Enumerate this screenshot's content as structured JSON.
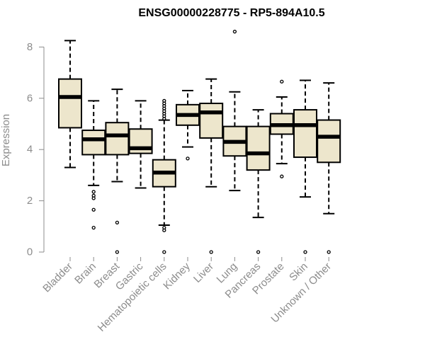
{
  "chart_data": {
    "type": "boxplot",
    "title": "ENSG00000228775 - RP5-894A10.5",
    "xlabel": "",
    "ylabel": "Expression",
    "ylim": [
      0,
      8
    ],
    "yticks": [
      0,
      2,
      4,
      6,
      8
    ],
    "box_fill": "#ede6cc",
    "categories": [
      "Bladder",
      "Brain",
      "Breast",
      "Gastric",
      "Hematopoietic cells",
      "Kidney",
      "Liver",
      "Lung",
      "Pancreas",
      "Prostate",
      "Skin",
      "Unknown / Other"
    ],
    "boxes": [
      {
        "min": 3.3,
        "q1": 4.85,
        "median": 6.05,
        "q3": 6.75,
        "max": 8.25,
        "outliers": []
      },
      {
        "min": 2.6,
        "q1": 3.8,
        "median": 4.4,
        "q3": 4.75,
        "max": 5.9,
        "outliers": [
          2.35,
          2.2,
          2.1,
          1.65,
          0.95
        ]
      },
      {
        "min": 2.75,
        "q1": 3.8,
        "median": 4.55,
        "q3": 5.05,
        "max": 6.35,
        "outliers": [
          1.15,
          0.0
        ]
      },
      {
        "min": 2.5,
        "q1": 3.85,
        "median": 4.05,
        "q3": 4.8,
        "max": 5.9,
        "outliers": []
      },
      {
        "min": 1.05,
        "q1": 2.55,
        "median": 3.1,
        "q3": 3.6,
        "max": 5.15,
        "outliers": [
          5.9,
          5.8,
          5.7,
          5.6,
          5.5,
          5.4,
          5.3,
          5.2,
          0.95,
          0.85,
          0.0
        ]
      },
      {
        "min": 4.1,
        "q1": 4.95,
        "median": 5.35,
        "q3": 5.75,
        "max": 6.3,
        "outliers": [
          3.65
        ]
      },
      {
        "min": 2.55,
        "q1": 4.45,
        "median": 5.45,
        "q3": 5.8,
        "max": 6.75,
        "outliers": [
          0.0
        ]
      },
      {
        "min": 2.4,
        "q1": 3.75,
        "median": 4.3,
        "q3": 4.9,
        "max": 6.25,
        "outliers": [
          8.6
        ]
      },
      {
        "min": 1.35,
        "q1": 3.2,
        "median": 3.85,
        "q3": 4.9,
        "max": 5.55,
        "outliers": [
          0.0
        ]
      },
      {
        "min": 3.45,
        "q1": 4.6,
        "median": 4.95,
        "q3": 5.4,
        "max": 6.05,
        "outliers": [
          6.65,
          2.95
        ]
      },
      {
        "min": 2.15,
        "q1": 3.7,
        "median": 4.95,
        "q3": 5.55,
        "max": 6.7,
        "outliers": [
          0.0
        ]
      },
      {
        "min": 1.5,
        "q1": 3.5,
        "median": 4.5,
        "q3": 5.15,
        "max": 6.6,
        "outliers": [
          0.0
        ]
      }
    ]
  }
}
